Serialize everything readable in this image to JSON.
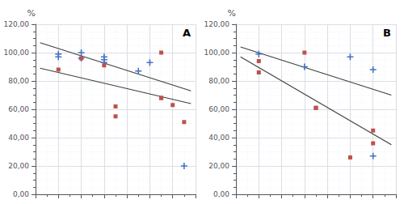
{
  "chart_data": [
    {
      "type": "scatter",
      "annotation": "A",
      "ylabel": "%",
      "xlim": [
        0,
        7
      ],
      "xticks": [
        0,
        1,
        2,
        3,
        4,
        5,
        6,
        7
      ],
      "ylim": [
        0,
        120
      ],
      "yticks": [
        {
          "value": 0,
          "label": "0,00"
        },
        {
          "value": 20,
          "label": "20,00"
        },
        {
          "value": 40,
          "label": "40,00"
        },
        {
          "value": 60,
          "label": "60,00"
        },
        {
          "value": 80,
          "label": "80,00"
        },
        {
          "value": 100,
          "label": "100,00"
        },
        {
          "value": 120,
          "label": "120,00"
        }
      ],
      "grid": true,
      "tick_labels": "y",
      "series": [
        {
          "type": "line",
          "color": "#404040",
          "x": [
            0.2,
            6.8
          ],
          "values": [
            107,
            73
          ]
        },
        {
          "type": "line",
          "color": "#404040",
          "x": [
            0.2,
            6.8
          ],
          "values": [
            89,
            64
          ]
        },
        {
          "type": "scatter",
          "color": "#4472C4",
          "marker": "plus",
          "x": [
            1,
            1,
            2,
            2,
            3,
            3,
            3,
            4.5,
            5,
            6.5
          ],
          "values": [
            99,
            97,
            100,
            96,
            97,
            95,
            93,
            87,
            93,
            20
          ]
        },
        {
          "type": "scatter",
          "color": "#C0504D",
          "marker": "square",
          "x": [
            1,
            2,
            3,
            3.5,
            3.5,
            5.5,
            5.5,
            5.5,
            6,
            6.5
          ],
          "values": [
            88,
            96,
            91,
            62,
            55,
            100,
            68,
            68,
            63,
            51
          ]
        }
      ]
    },
    {
      "type": "scatter",
      "annotation": "B",
      "ylabel": "%",
      "xlim": [
        0,
        7
      ],
      "xticks": [
        0,
        1,
        2,
        3,
        4,
        5,
        6,
        7
      ],
      "ylim": [
        0,
        120
      ],
      "yticks": [
        {
          "value": 0,
          "label": "0,00"
        },
        {
          "value": 20,
          "label": "20,00"
        },
        {
          "value": 40,
          "label": "40,00"
        },
        {
          "value": 60,
          "label": "60,00"
        },
        {
          "value": 80,
          "label": "80,00"
        },
        {
          "value": 100,
          "label": "100,00"
        },
        {
          "value": 120,
          "label": "120,00"
        }
      ],
      "grid": true,
      "tick_labels": "y",
      "series": [
        {
          "type": "line",
          "color": "#404040",
          "x": [
            0.2,
            6.8
          ],
          "values": [
            104,
            70
          ]
        },
        {
          "type": "line",
          "color": "#404040",
          "x": [
            0.2,
            6.8
          ],
          "values": [
            97,
            35
          ]
        },
        {
          "type": "scatter",
          "color": "#4472C4",
          "marker": "plus",
          "x": [
            1,
            3,
            5,
            6,
            6
          ],
          "values": [
            99,
            90,
            97,
            88,
            27
          ]
        },
        {
          "type": "scatter",
          "color": "#C0504D",
          "marker": "square",
          "x": [
            1,
            1,
            3,
            3.5,
            3.5,
            5,
            6,
            6
          ],
          "values": [
            94,
            86,
            100,
            61,
            61,
            26,
            45,
            36
          ]
        }
      ]
    }
  ]
}
